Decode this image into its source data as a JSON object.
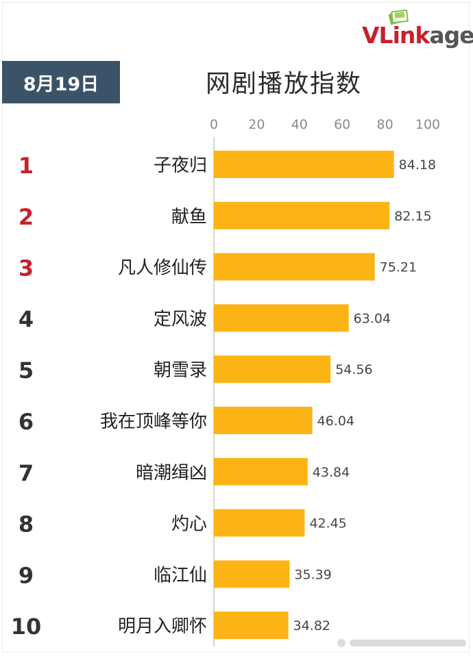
{
  "header": {
    "date": "8月19日",
    "title": "网剧播放指数",
    "logo": "VLinkage"
  },
  "chart_data": {
    "type": "bar",
    "orientation": "horizontal",
    "title": "网剧播放指数",
    "xlim": [
      0,
      100
    ],
    "x_ticks": [
      0,
      20,
      40,
      60,
      80,
      100
    ],
    "grid": false,
    "bar_color": "#fcb415",
    "rank_colors": {
      "top3": "#c8202a",
      "rest": "#333333"
    },
    "ranks": [
      "1",
      "2",
      "3",
      "4",
      "5",
      "6",
      "7",
      "8",
      "9",
      "10"
    ],
    "categories": [
      "子夜归",
      "献鱼",
      "凡人修仙传",
      "定风波",
      "朝雪录",
      "我在顶峰等你",
      "暗潮缉凶",
      "灼心",
      "临江仙",
      "明月入卿怀"
    ],
    "values": [
      84.18,
      82.15,
      75.21,
      63.04,
      54.56,
      46.04,
      43.84,
      42.45,
      35.39,
      34.82
    ],
    "value_labels": [
      "84.18",
      "82.15",
      "75.21",
      "63.04",
      "54.56",
      "46.04",
      "43.84",
      "42.45",
      "35.39",
      "34.82"
    ]
  }
}
